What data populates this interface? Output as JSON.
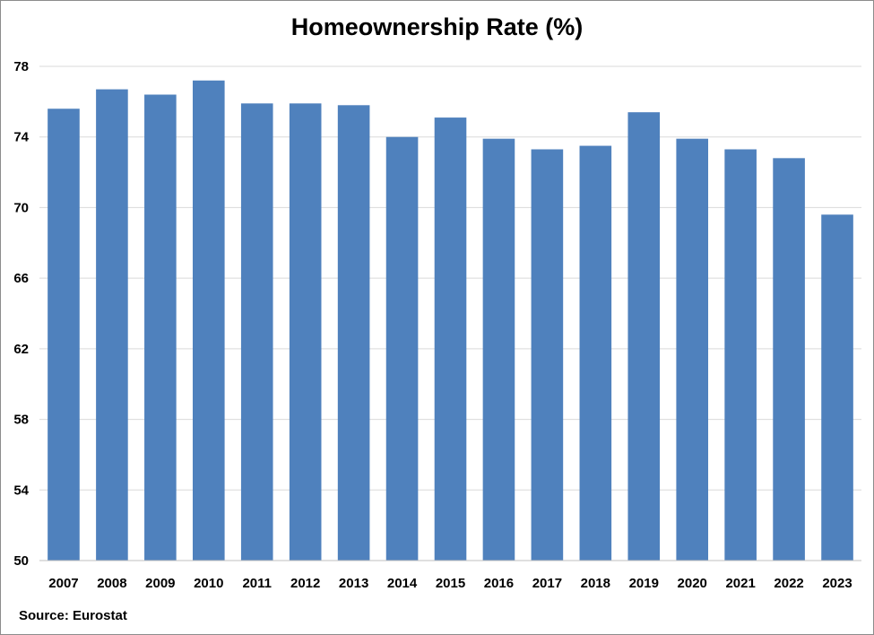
{
  "chart_data": {
    "type": "bar",
    "title": "Homeownership Rate (%)",
    "xlabel": "",
    "ylabel": "",
    "categories": [
      "2007",
      "2008",
      "2009",
      "2010",
      "2011",
      "2012",
      "2013",
      "2014",
      "2015",
      "2016",
      "2017",
      "2018",
      "2019",
      "2020",
      "2021",
      "2022",
      "2023"
    ],
    "values": [
      75.6,
      76.7,
      76.4,
      77.2,
      75.9,
      75.9,
      75.8,
      74.0,
      75.1,
      73.9,
      73.3,
      73.5,
      75.4,
      73.9,
      73.3,
      72.8,
      69.6
    ],
    "ylim": [
      50,
      78
    ],
    "yticks": [
      50,
      54,
      58,
      62,
      66,
      70,
      74,
      78
    ],
    "grid": true,
    "legend": "none",
    "bar_color": "#4f81bd",
    "source": "Source: Eurostat"
  }
}
